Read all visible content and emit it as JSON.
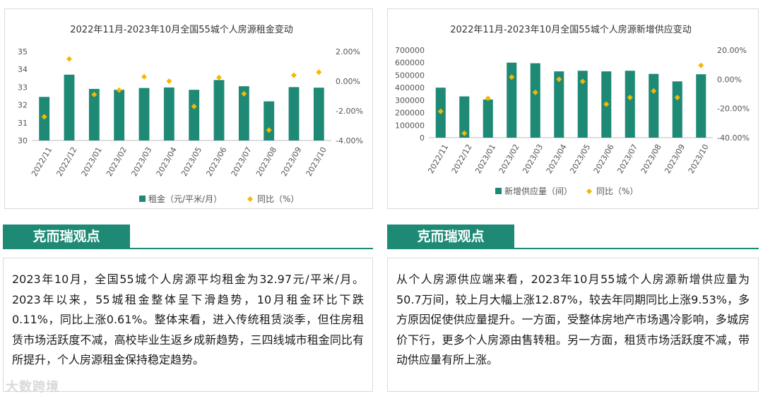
{
  "chart_data": [
    {
      "type": "bar",
      "title": "2022年11月-2023年10月全国55城个人房源租金变动",
      "categories": [
        "2022/11",
        "2022/12",
        "2023/01",
        "2023/02",
        "2023/03",
        "2023/04",
        "2023/05",
        "2023/06",
        "2023/07",
        "2023/08",
        "2023/09",
        "2023/10"
      ],
      "series": [
        {
          "name": "租金（元/平米/月）",
          "kind": "bar",
          "axis": "left",
          "values": [
            32.45,
            33.7,
            32.9,
            32.85,
            32.95,
            32.98,
            32.85,
            33.4,
            33.05,
            32.2,
            33.0,
            32.97
          ],
          "color": "#1e8a75"
        },
        {
          "name": "同比（%）",
          "kind": "scatter",
          "axis": "right",
          "values": [
            -2.4,
            1.5,
            -0.9,
            -0.6,
            0.3,
            0.0,
            -1.7,
            0.25,
            -0.85,
            -3.3,
            0.4,
            0.61
          ],
          "color": "#f5b800"
        }
      ],
      "left_axis": {
        "min": 30,
        "max": 35,
        "ticks": [
          "30",
          "31",
          "32",
          "33",
          "34",
          "35"
        ]
      },
      "right_axis": {
        "min": -4,
        "max": 2,
        "ticks": [
          "-4.00%",
          "-2.00%",
          "0.00%",
          "2.00%"
        ]
      },
      "legend": [
        "租金（元/平米/月）",
        "同比（%）"
      ],
      "legend_position": "bottom",
      "grid": false
    },
    {
      "type": "bar",
      "title": "2022年11月-2023年10月全国55城个人房源新增供应变动",
      "categories": [
        "2022/11",
        "2022/12",
        "2023/01",
        "2023/02",
        "2023/03",
        "2023/04",
        "2023/05",
        "2023/06",
        "2023/07",
        "2023/08",
        "2023/09",
        "2023/10"
      ],
      "series": [
        {
          "name": "新增供应量（间）",
          "kind": "bar",
          "axis": "left",
          "values": [
            400000,
            330000,
            305000,
            600000,
            595000,
            530000,
            535000,
            530000,
            535000,
            510000,
            450000,
            507000
          ],
          "color": "#1e8a75"
        },
        {
          "name": "同比（%）",
          "kind": "scatter",
          "axis": "right",
          "values": [
            -22,
            -37,
            -13,
            1.5,
            -9,
            0,
            -1.5,
            -17,
            -12.5,
            -8,
            -12.5,
            9.53
          ],
          "color": "#f5b800"
        }
      ],
      "left_axis": {
        "min": 0,
        "max": 700000,
        "ticks": [
          "0",
          "100000",
          "200000",
          "300000",
          "400000",
          "500000",
          "600000",
          "700000"
        ]
      },
      "right_axis": {
        "min": -40,
        "max": 20,
        "ticks": [
          "-40.00%",
          "-20.00%",
          "0.00%",
          "20.00%"
        ]
      },
      "legend": [
        "新增供应量（间）",
        "同比（%）"
      ],
      "legend_position": "bottom",
      "grid": false
    }
  ],
  "panels": {
    "left_header": "克而瑞观点",
    "right_header": "克而瑞观点",
    "left_text": "2023年10月，全国55城个人房源平均租金为32.97元/平米/月。2023年以来，55城租金整体呈下滑趋势，10月租金环比下跌0.11%，同比上涨0.61%。整体来看，进入传统租赁淡季，但住房租赁市场活跃度不减，高校毕业生返乡成新趋势，三四线城市租金同比有所提升，个人房源租金保持稳定趋势。",
    "right_text": "从个人房源供应端来看，2023年10月55城个人房源新增供应量为50.7万间，较上月大幅上涨12.87%，较去年同期同比上涨9.53%，多方原因促使供应量提升。一方面，受整体房地产市场遇冷影响，多城房价下行，更多个人房源由售转租。另一方面，租赁市场活跃度不减，带动供应量有所上涨。"
  },
  "watermark": "大数跨境"
}
